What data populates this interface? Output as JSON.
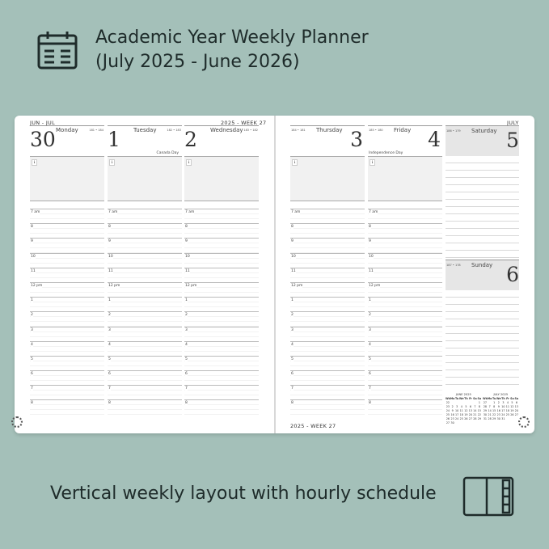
{
  "header": {
    "title_line1": "Academic Year Weekly Planner",
    "title_line2": "(July 2025 - June 2026)",
    "icon": "calendar-icon"
  },
  "footer": {
    "text": "Vertical weekly layout with hourly schedule",
    "icon": "open-book-icon"
  },
  "planner": {
    "left_header": "JUN - JUL",
    "left_week": "2025 - WEEK 27",
    "right_month": "JULY",
    "right_footer": "2025 - WEEK 27",
    "info_glyph": "i",
    "hours": [
      "7 am",
      "8",
      "9",
      "10",
      "11",
      "12 pm",
      "1",
      "2",
      "3",
      "4",
      "5",
      "6",
      "7",
      "8"
    ],
    "days": [
      {
        "num": "30",
        "name": "Monday",
        "count": "181 • 184",
        "holiday": ""
      },
      {
        "num": "1",
        "name": "Tuesday",
        "count": "182 • 183",
        "holiday": "Canada Day"
      },
      {
        "num": "2",
        "name": "Wednesday",
        "count": "183 • 182",
        "holiday": ""
      },
      {
        "num": "3",
        "name": "Thursday",
        "count": "184 • 181",
        "holiday": ""
      },
      {
        "num": "4",
        "name": "Friday",
        "count": "185 • 180",
        "holiday": "Independence Day"
      },
      {
        "num": "5",
        "name": "Saturday",
        "count": "186 • 179",
        "holiday": ""
      },
      {
        "num": "6",
        "name": "Sunday",
        "count": "187 • 178",
        "holiday": ""
      }
    ],
    "mini_calendars": [
      {
        "title": "JUNE 2025",
        "head": [
          "Wk",
          "Mo",
          "Tu",
          "We",
          "Th",
          "Fr",
          "Sa",
          "Su"
        ],
        "rows": [
          [
            "22",
            "",
            "",
            "",
            "",
            "",
            "",
            "1"
          ],
          [
            "23",
            "2",
            "3",
            "4",
            "5",
            "6",
            "7",
            "8"
          ],
          [
            "24",
            "9",
            "10",
            "11",
            "12",
            "13",
            "14",
            "15"
          ],
          [
            "25",
            "16",
            "17",
            "18",
            "19",
            "20",
            "21",
            "22"
          ],
          [
            "26",
            "23",
            "24",
            "25",
            "26",
            "27",
            "28",
            "29"
          ],
          [
            "27",
            "30",
            "",
            "",
            "",
            "",
            "",
            ""
          ]
        ]
      },
      {
        "title": "JULY 2025",
        "head": [
          "Wk",
          "Mo",
          "Tu",
          "We",
          "Th",
          "Fr",
          "Sa",
          "Su"
        ],
        "rows": [
          [
            "27",
            "",
            "1",
            "2",
            "3",
            "4",
            "5",
            "6"
          ],
          [
            "28",
            "7",
            "8",
            "9",
            "10",
            "11",
            "12",
            "13"
          ],
          [
            "29",
            "14",
            "15",
            "16",
            "17",
            "18",
            "19",
            "20"
          ],
          [
            "30",
            "21",
            "22",
            "23",
            "24",
            "25",
            "26",
            "27"
          ],
          [
            "31",
            "28",
            "29",
            "30",
            "31",
            "",
            "",
            ""
          ]
        ]
      }
    ]
  },
  "colors": {
    "background": "#a4c0b9",
    "text": "#1e2b2a",
    "notes_fill": "#f1f1f1",
    "weekend_fill": "#e6e6e6"
  }
}
